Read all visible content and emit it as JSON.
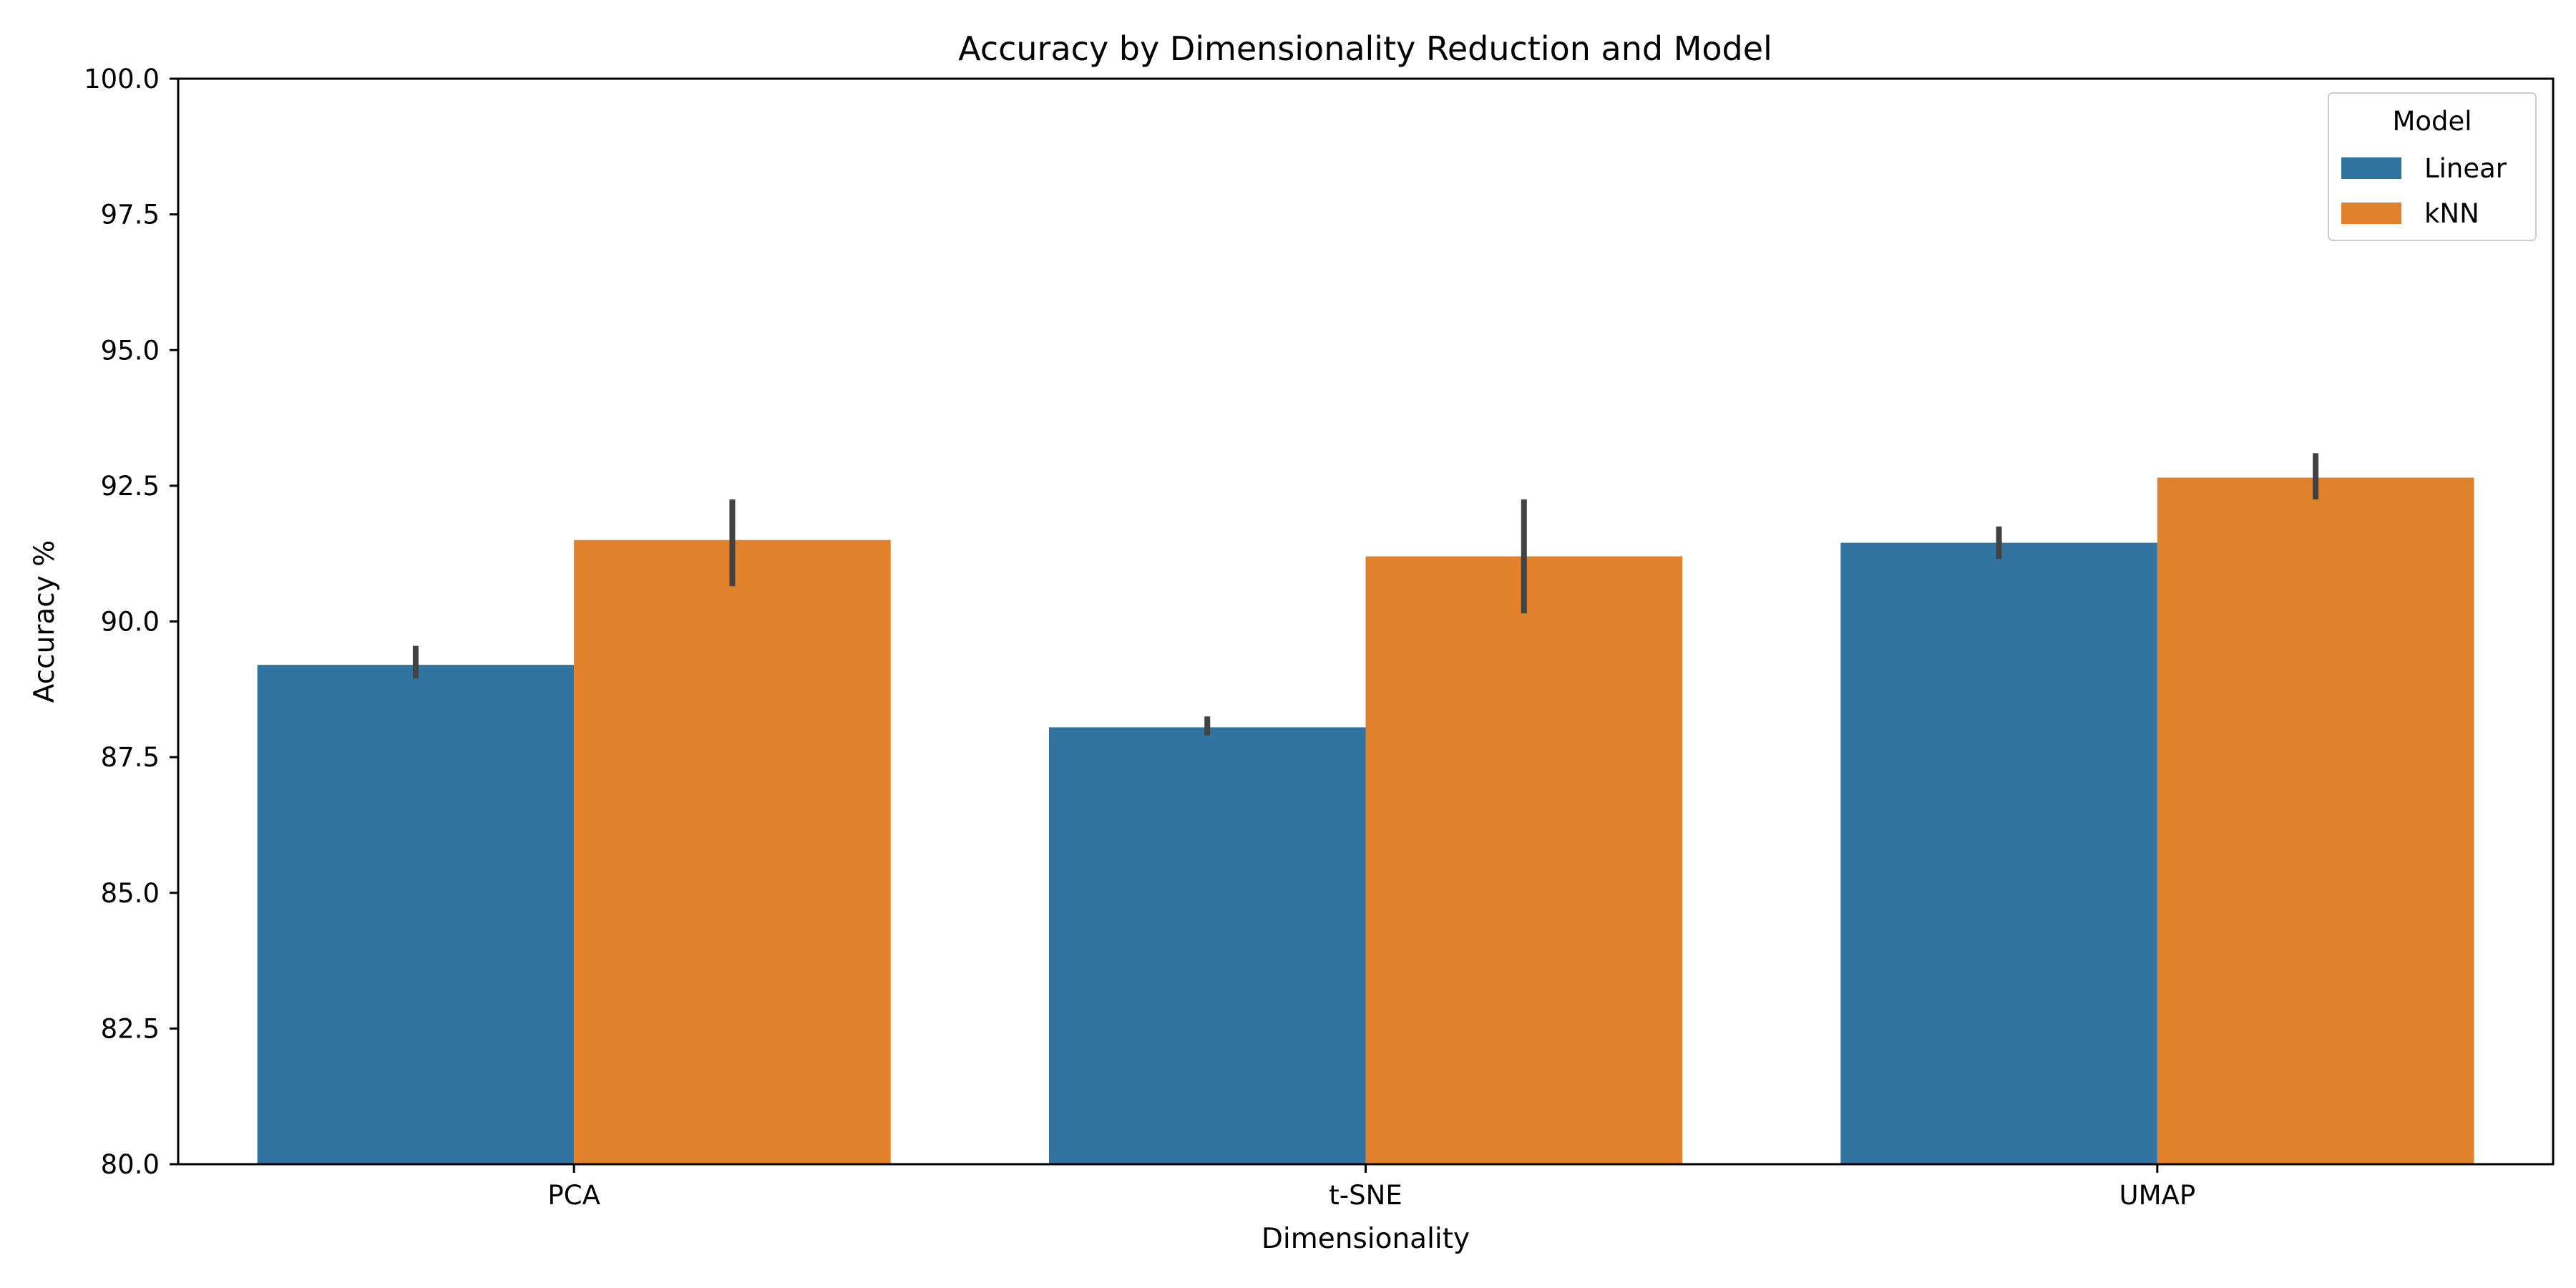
{
  "chart_data": {
    "type": "bar",
    "title": "Accuracy by Dimensionality Reduction and Model",
    "xlabel": "Dimensionality",
    "ylabel": "Accuracy %",
    "categories": [
      "PCA",
      "t-SNE",
      "UMAP"
    ],
    "ylim": [
      80.0,
      100.0
    ],
    "yticks": [
      "80.0",
      "82.5",
      "85.0",
      "87.5",
      "90.0",
      "92.5",
      "95.0",
      "97.5",
      "100.0"
    ],
    "series": [
      {
        "name": "Linear",
        "color": "#3274a1",
        "values": [
          89.2,
          88.05,
          91.45
        ],
        "error_low": [
          88.95,
          87.9,
          91.15
        ],
        "error_high": [
          89.55,
          88.25,
          91.75
        ]
      },
      {
        "name": "kNN",
        "color": "#e1812c",
        "values": [
          91.5,
          91.2,
          92.65
        ],
        "error_low": [
          90.65,
          90.15,
          92.25
        ],
        "error_high": [
          92.25,
          92.25,
          93.1
        ]
      }
    ],
    "legend": {
      "title": "Model",
      "placement": "top-right"
    },
    "grid": false
  }
}
